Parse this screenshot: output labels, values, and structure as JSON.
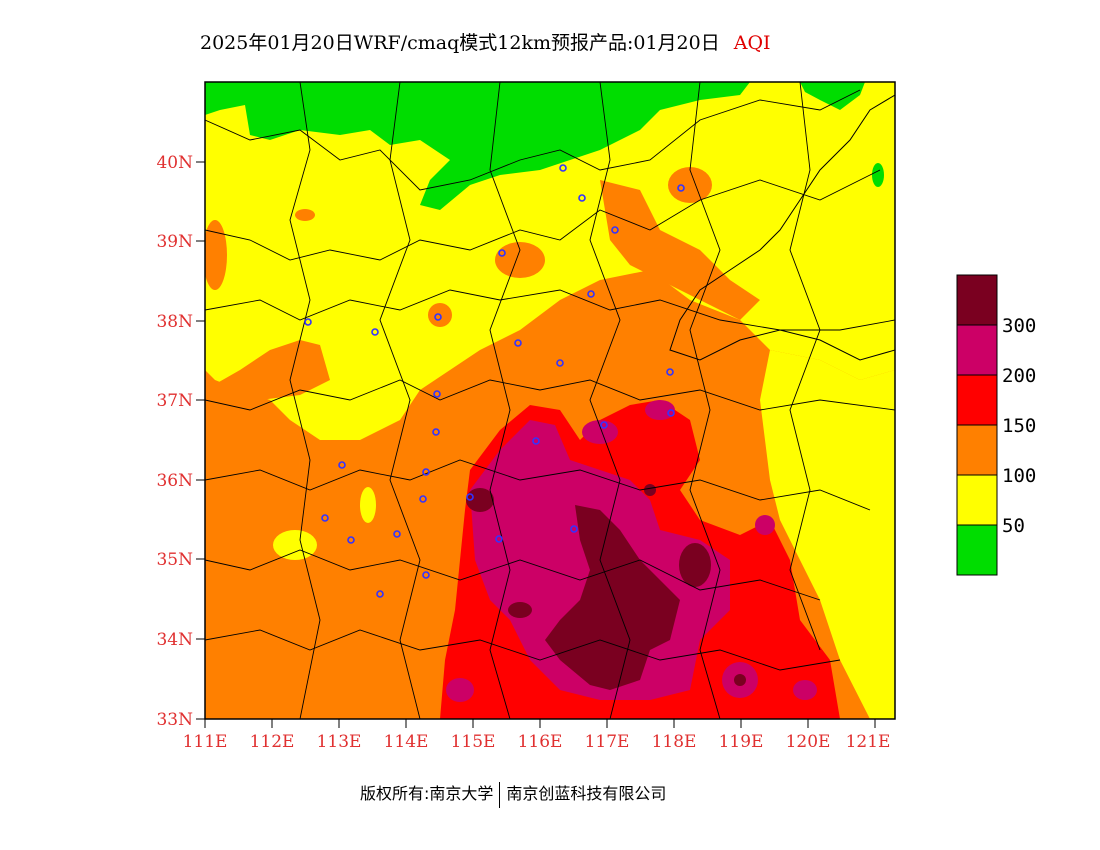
{
  "title": {
    "text": "2025年01月20日WRF/cmaq模式12km预报产品:01月20日",
    "variable": "AQI"
  },
  "axes": {
    "lat_labels": [
      "33N",
      "34N",
      "35N",
      "36N",
      "37N",
      "38N",
      "39N",
      "40N"
    ],
    "lon_labels": [
      "111E",
      "112E",
      "113E",
      "114E",
      "115E",
      "116E",
      "117E",
      "118E",
      "119E",
      "120E",
      "121E"
    ],
    "lat_range": [
      33,
      41
    ],
    "lon_range": [
      111,
      121.3
    ]
  },
  "legend": {
    "levels": [
      "50",
      "100",
      "150",
      "200",
      "300"
    ],
    "colors": [
      "#00dd00",
      "#ffff00",
      "#ff8000",
      "#ff0000",
      "#cc0066",
      "#7a0020"
    ]
  },
  "colors": {
    "good": "#00dd00",
    "moderate": "#ffff00",
    "usg": "#ff8000",
    "unhealthy": "#ff0000",
    "very_unhealthy": "#cc0066",
    "hazardous": "#7a0020",
    "label": "#e03030",
    "station": "#3333ff"
  },
  "footer": {
    "left": "版权所有:南京大学",
    "right": "南京创蓝科技有限公司"
  }
}
